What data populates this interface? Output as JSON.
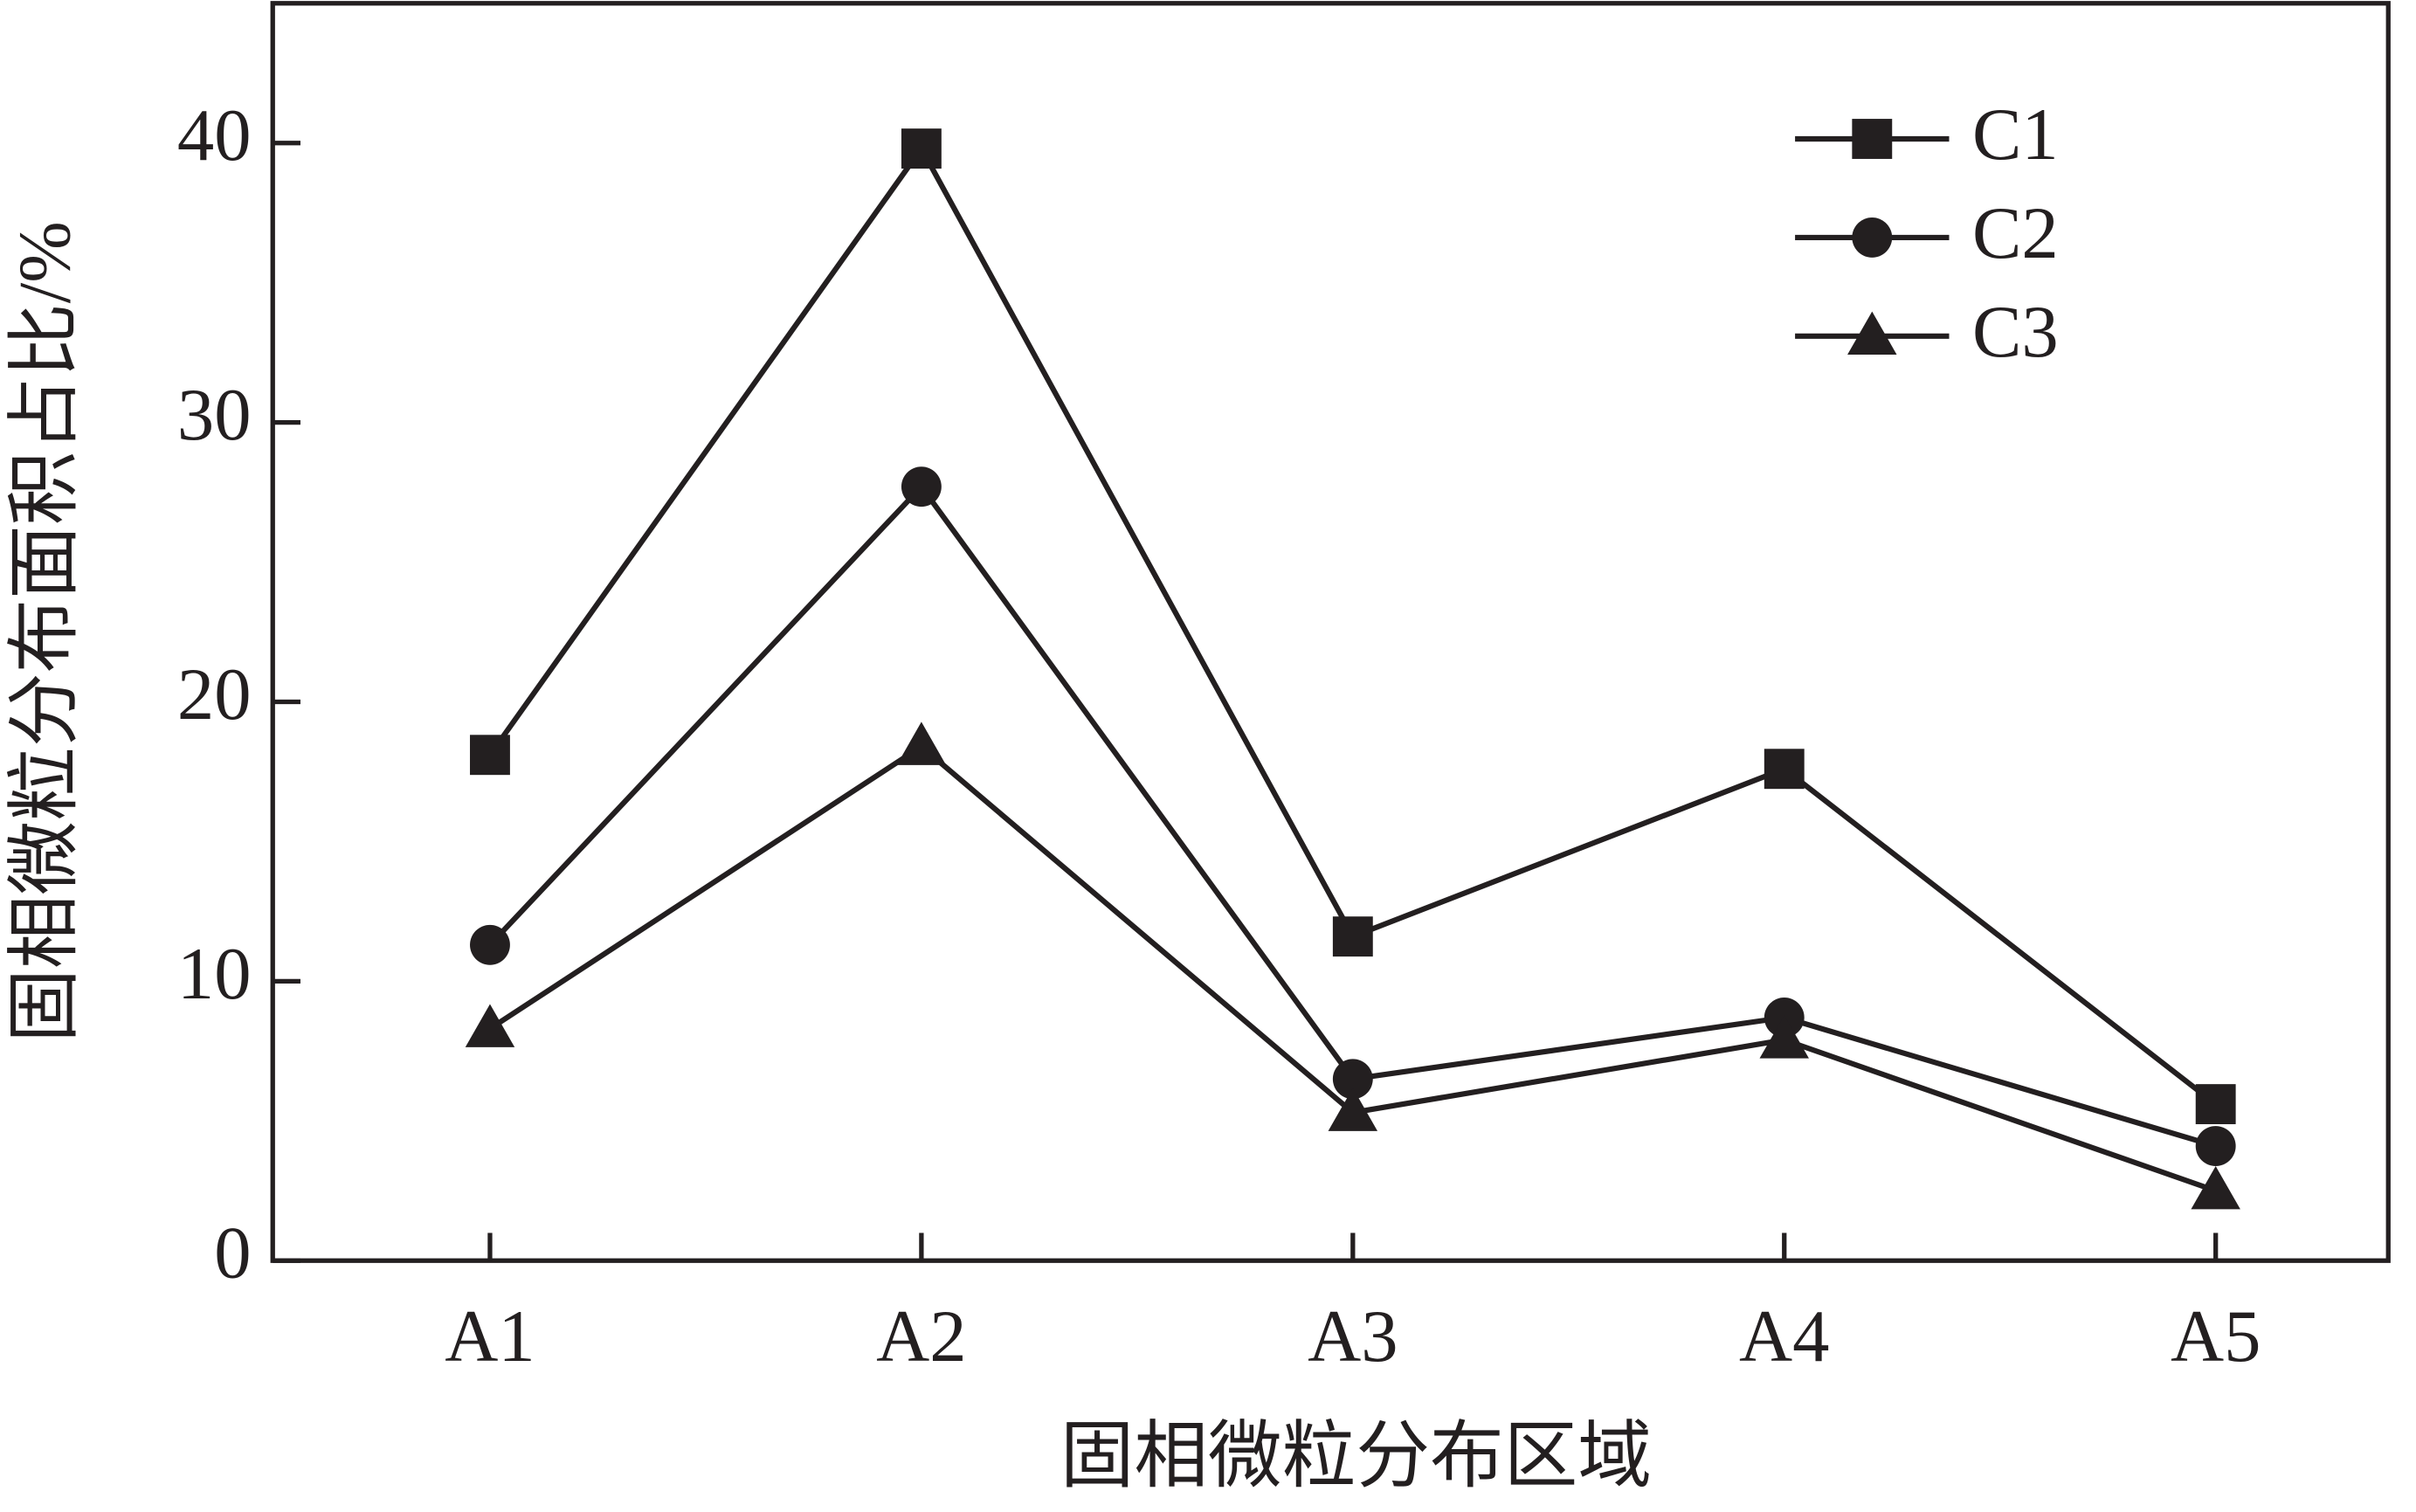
{
  "chart_data": {
    "type": "line",
    "x_label": "固相微粒分布区域",
    "y_label": "固相微粒分布面积占比/%",
    "categories": [
      "A1",
      "A2",
      "A3",
      "A4",
      "A5"
    ],
    "series": [
      {
        "name": "C1",
        "color": "#231f20",
        "marker": "square",
        "values": [
          18.1,
          39.8,
          11.6,
          17.6,
          5.6
        ]
      },
      {
        "name": "C2",
        "color": "#231f20",
        "marker": "circle",
        "values": [
          11.3,
          27.7,
          6.5,
          8.7,
          4.1
        ]
      },
      {
        "name": "C3",
        "color": "#231f20",
        "marker": "triangle",
        "values": [
          8.3,
          18.4,
          5.3,
          7.9,
          2.5
        ]
      }
    ],
    "ylim": [
      0,
      45
    ],
    "yticks": [
      0,
      10,
      20,
      30,
      40
    ],
    "legend": "upper right"
  }
}
